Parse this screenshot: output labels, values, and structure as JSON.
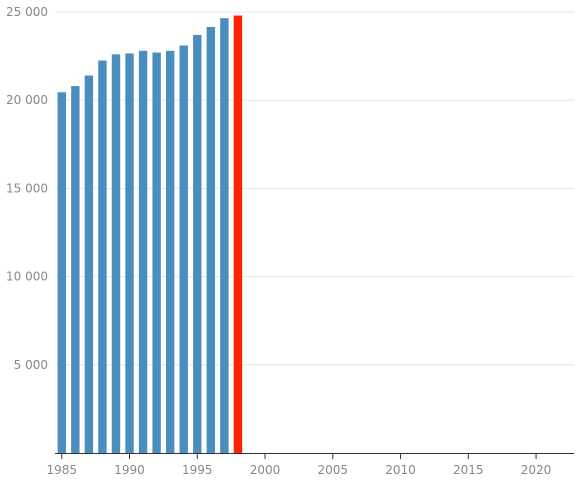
{
  "chart_data": {
    "type": "bar",
    "title": "",
    "xlabel": "",
    "ylabel": "",
    "x": [
      1985,
      1986,
      1987,
      1988,
      1989,
      1990,
      1991,
      1992,
      1993,
      1994,
      1995,
      1996,
      1997,
      1998
    ],
    "values": [
      20450,
      20800,
      21400,
      22250,
      22600,
      22650,
      22800,
      22700,
      22800,
      23100,
      23700,
      24150,
      24650,
      24800
    ],
    "bar_colors": [
      "#4a8ec0",
      "#4a8ec0",
      "#4a8ec0",
      "#4a8ec0",
      "#4a8ec0",
      "#4a8ec0",
      "#4a8ec0",
      "#4a8ec0",
      "#4a8ec0",
      "#4a8ec0",
      "#4a8ec0",
      "#4a8ec0",
      "#4a8ec0",
      "#ff2200"
    ],
    "xlim": [
      1984.5,
      2022.8
    ],
    "ylim": [
      0,
      25000
    ],
    "x_ticks": [
      1985,
      1990,
      1995,
      2000,
      2005,
      2010,
      2015,
      2020
    ],
    "x_tick_labels": [
      "1985",
      "1990",
      "1995",
      "2000",
      "2005",
      "2010",
      "2015",
      "2020"
    ],
    "y_ticks": [
      5000,
      10000,
      15000,
      20000,
      25000
    ],
    "y_tick_labels": [
      "5 000",
      "10 000",
      "15 000",
      "20 000",
      "25 000"
    ],
    "grid": true,
    "legend": "none"
  }
}
